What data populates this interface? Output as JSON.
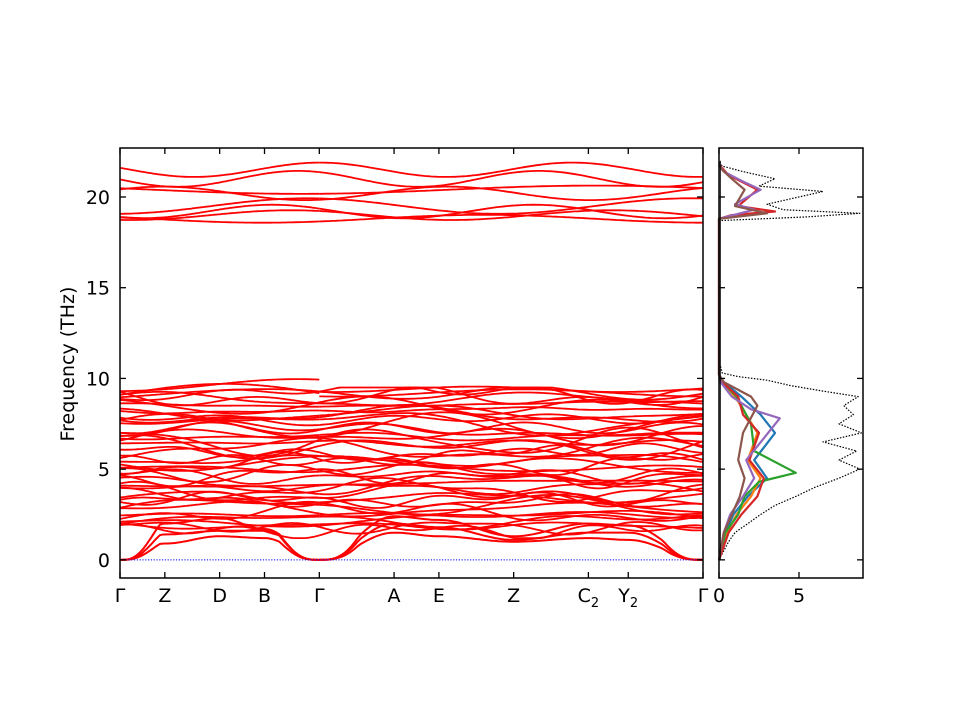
{
  "chart_data": [
    {
      "type": "line",
      "title": "",
      "xlabel": "",
      "ylabel": "Frequency (THz)",
      "ylim": [
        -1.0,
        22.7
      ],
      "yticks": [
        0,
        5,
        10,
        15,
        20
      ],
      "path_ticks": [
        {
          "label": "Γ",
          "x": 0.0
        },
        {
          "label": "Z",
          "x": 0.45
        },
        {
          "label": "D",
          "x": 1.0
        },
        {
          "label": "B",
          "x": 1.45
        },
        {
          "label": "Γ",
          "x": 2.0
        },
        {
          "label": "A",
          "x": 2.75
        },
        {
          "label": "E",
          "x": 3.2
        },
        {
          "label": "Z",
          "x": 3.95
        },
        {
          "label": "C",
          "sub": "2",
          "x": 4.7
        },
        {
          "label": "Y",
          "sub": "2",
          "x": 5.1
        },
        {
          "label": "Γ",
          "x": 5.85
        }
      ],
      "xlim": [
        0,
        5.85
      ],
      "discontinuity_at": 2.0,
      "zero_line": {
        "y": 0,
        "color": "#0000ff"
      },
      "band_color": "#ff0000",
      "bands": {
        "acoustic_top_at_path_points": [
          0,
          2.0,
          2.3,
          1.7,
          0,
          2.4,
          2.2,
          1.3,
          2.0,
          1.9,
          0
        ],
        "acoustic_mid_at_path_points": [
          0,
          1.4,
          1.6,
          1.6,
          0,
          2.0,
          1.8,
          1.1,
          1.5,
          1.5,
          0
        ],
        "acoustic_low_at_path_points": [
          0,
          0.9,
          1.3,
          1.2,
          0,
          1.5,
          1.3,
          1.0,
          1.2,
          1.1,
          0
        ],
        "optical_low_group_range": [
          1.2,
          10.4
        ],
        "optical_high_group_range": [
          18.7,
          21.6
        ],
        "highest_low_group_max": 10.4,
        "high_group_levels_at_gamma": [
          18.9,
          19.1,
          19.3,
          19.6,
          20.3,
          20.5,
          21.1,
          21.6
        ]
      }
    },
    {
      "type": "line",
      "title": "",
      "xlabel": "",
      "ylabel": "",
      "xlim": [
        0,
        9.0
      ],
      "xticks": [
        0,
        5
      ],
      "ylim": [
        -1.0,
        22.7
      ],
      "series": [
        {
          "color": "#000000",
          "style": "dotted",
          "role": "total",
          "x": [
            0.0,
            0.3,
            0.6,
            1.0,
            1.8,
            2.6,
            3.5,
            4.8,
            6.0,
            7.5,
            8.8,
            7.5,
            8.6,
            6.5,
            8.9,
            7.5,
            8.4,
            7.8,
            8.7,
            6.5,
            4.5,
            3.0,
            1.2,
            0.2,
            0,
            0,
            0,
            0,
            5.5,
            8.8,
            4.0,
            3.0,
            6.5,
            2.5,
            3.5,
            1.5,
            0.2,
            0
          ],
          "y": [
            0.0,
            0.5,
            1.0,
            1.5,
            2.0,
            2.5,
            3.0,
            3.5,
            4.0,
            4.5,
            5.0,
            5.5,
            6.0,
            6.5,
            7.0,
            7.5,
            8.0,
            8.5,
            9.0,
            9.3,
            9.6,
            9.9,
            10.1,
            10.3,
            11,
            15,
            18,
            18.7,
            18.9,
            19.1,
            19.3,
            19.6,
            20.3,
            20.6,
            21.0,
            21.4,
            21.7,
            22.0
          ]
        },
        {
          "color": "#1f77b4",
          "x": [
            0,
            0.4,
            0.9,
            1.8,
            3.0,
            2.2,
            3.5,
            2.6,
            1.4,
            0.3,
            0
          ],
          "y": [
            0,
            1.5,
            2.5,
            3.5,
            4.5,
            5.5,
            7.0,
            8.0,
            9.0,
            9.8,
            10.2
          ]
        },
        {
          "color": "#ff7f0e",
          "x": [
            0,
            0.5,
            1.1,
            2.0,
            2.6,
            1.8,
            2.4,
            1.7,
            1.0,
            0.2,
            0
          ],
          "y": [
            0,
            1.5,
            2.5,
            3.5,
            4.5,
            5.5,
            7.0,
            8.0,
            9.0,
            9.8,
            10.2
          ]
        },
        {
          "color": "#2ca02c",
          "x": [
            0,
            0.4,
            1.2,
            1.6,
            2.5,
            4.8,
            2.2,
            2.0,
            1.1,
            0.2,
            0
          ],
          "y": [
            0,
            1.5,
            2.5,
            3.5,
            4.3,
            4.8,
            6.0,
            7.5,
            9.0,
            9.8,
            10.2
          ]
        },
        {
          "color": "#d62728",
          "x": [
            0,
            0.6,
            1.4,
            2.4,
            2.8,
            1.9,
            2.5,
            1.5,
            1.2,
            0.2,
            0,
            0,
            0,
            0.8,
            3.5,
            1.2,
            2.4,
            0.6,
            0
          ],
          "y": [
            0,
            1.5,
            2.5,
            3.5,
            4.5,
            5.5,
            7.0,
            8.0,
            9.0,
            9.8,
            10.2,
            15,
            18.8,
            19.0,
            19.2,
            19.5,
            20.4,
            21.2,
            21.8
          ]
        },
        {
          "color": "#9467bd",
          "x": [
            0,
            0.3,
            0.7,
            1.5,
            2.2,
            1.7,
            3.8,
            2.0,
            0.8,
            0.1,
            0,
            0,
            0,
            2.2,
            1.0,
            2.6,
            1.4,
            0.3,
            0
          ],
          "y": [
            0,
            1.5,
            2.5,
            3.5,
            4.5,
            5.5,
            7.8,
            8.3,
            9.0,
            9.8,
            10.2,
            15,
            18.8,
            19.3,
            19.6,
            20.4,
            20.9,
            21.4,
            21.8
          ]
        },
        {
          "color": "#8c564b",
          "x": [
            0,
            0.3,
            0.8,
            1.3,
            1.6,
            1.2,
            1.5,
            2.4,
            2.0,
            0.3,
            0,
            0,
            0,
            3.0,
            1.0,
            1.6,
            0.8,
            0.2,
            0
          ],
          "y": [
            0,
            1.5,
            2.5,
            3.5,
            4.5,
            5.5,
            7.0,
            8.5,
            9.0,
            9.8,
            10.2,
            15,
            18.8,
            19.1,
            19.5,
            20.4,
            21.0,
            21.5,
            21.8
          ]
        }
      ]
    }
  ]
}
